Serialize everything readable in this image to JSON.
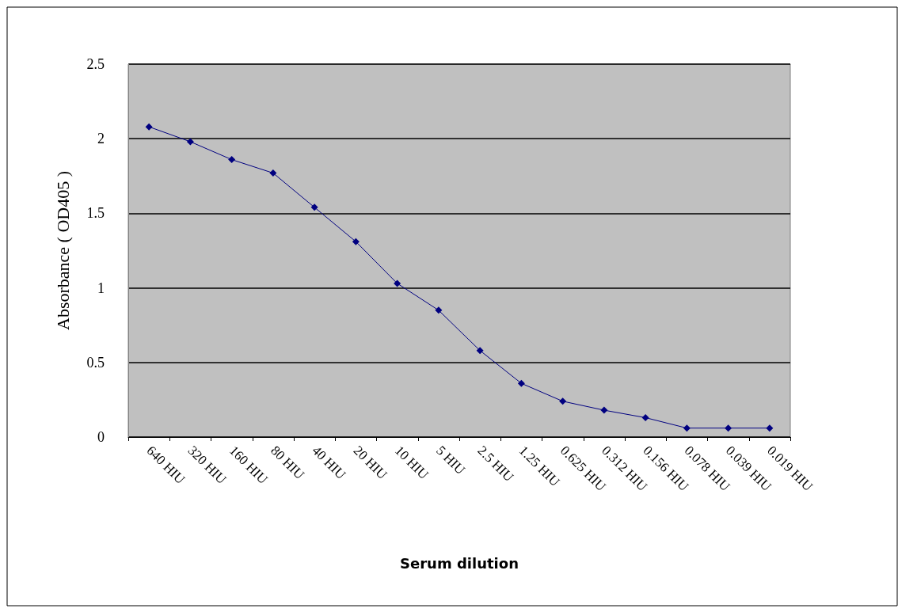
{
  "chart_data": {
    "type": "line",
    "xlabel": "Serum dilution",
    "ylabel": "Absorbance ( OD405 )",
    "categories": [
      "640 HIU",
      "320 HIU",
      "160 HIU",
      "80 HIU",
      "40 HIU",
      "20 HIU",
      "10 HIU",
      "5 HIU",
      "2.5 HIU",
      "1.25 HIU",
      "0.625 HIU",
      "0.312 HIU",
      "0.156 HIU",
      "0.078 HIU",
      "0.039 HIU",
      "0.019 HIU"
    ],
    "series": [
      {
        "color": "#000080",
        "values": [
          2.08,
          1.98,
          1.86,
          1.77,
          1.54,
          1.31,
          1.03,
          0.85,
          0.58,
          0.36,
          0.24,
          0.18,
          0.13,
          0.06,
          0.06,
          0.06
        ]
      }
    ],
    "ylim": [
      0,
      2.5
    ],
    "yticks": [
      0,
      0.5,
      1,
      1.5,
      2,
      2.5
    ],
    "grid": "y",
    "marker": "diamond",
    "line_style": "solid"
  }
}
